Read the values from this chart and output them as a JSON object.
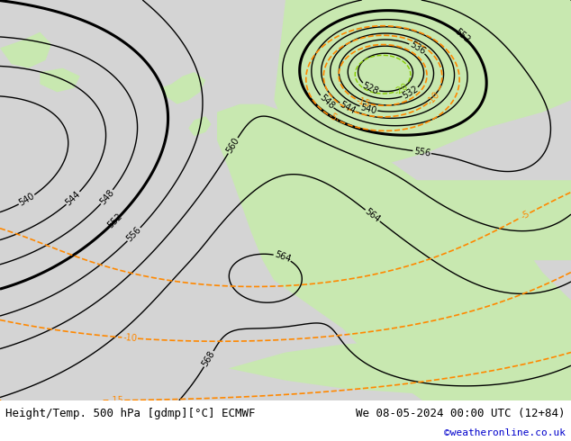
{
  "title_left": "Height/Temp. 500 hPa [gdmp][°C] ECMWF",
  "title_right": "We 08-05-2024 00:00 UTC (12+84)",
  "credit": "©weatheronline.co.uk",
  "background_color": "#ffffff",
  "land_color": "#c8e8b0",
  "sea_color": "#d8d8d8",
  "contour_color_height": "#000000",
  "contour_color_temp_cold_dark": "#0055ff",
  "contour_color_temp_cold_mid": "#00cccc",
  "contour_color_temp_warm_yellow": "#aacc00",
  "contour_color_temp_warm_orange": "#ff8800",
  "label_fontsize": 7,
  "title_fontsize": 9,
  "credit_fontsize": 8,
  "credit_color": "#0000cc"
}
